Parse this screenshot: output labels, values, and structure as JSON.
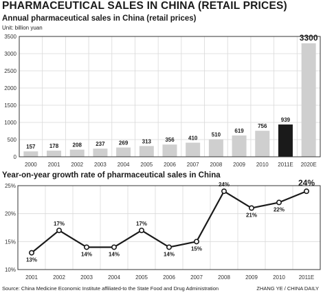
{
  "title": "PHARMACEUTICAL SALES IN CHINA  (RETAIL PRICES)",
  "source": "Source: China Medicine Economic Institute affiliated-to the State Food and Drug Administration",
  "credit": "ZHANG YE / CHINA DAILY",
  "colors": {
    "bar": "#cfcfcf",
    "highlight": "#1a1a1a",
    "line": "#1a1a1a",
    "grid": "#d9d9d9",
    "frame": "#333333"
  },
  "chart_data": [
    {
      "type": "bar",
      "title": "Annual pharmaceutical sales in China (retail prices)",
      "unit": "Unit: billion yuan",
      "categories": [
        "2000",
        "2001",
        "2002",
        "2003",
        "2004",
        "2005",
        "2006",
        "2007",
        "2008",
        "2009",
        "2010",
        "2011E",
        "2020E"
      ],
      "values": [
        157,
        178,
        208,
        237,
        269,
        313,
        356,
        410,
        510,
        619,
        756,
        939,
        3300
      ],
      "value_labels": [
        "157",
        "178",
        "208",
        "237",
        "269",
        "313",
        "356",
        "410",
        "510",
        "619",
        "756",
        "939",
        "3300"
      ],
      "highlight_category": "2011E",
      "yticks": [
        0,
        500,
        1000,
        1500,
        2000,
        2500,
        3000,
        3500
      ],
      "ylim": [
        0,
        3500
      ],
      "grid": true
    },
    {
      "type": "line",
      "title": "Year-on-year growth rate of pharmaceutical sales in China",
      "categories": [
        "2001",
        "2002",
        "2003",
        "2004",
        "2005",
        "2006",
        "2007",
        "2008",
        "2009",
        "2010",
        "2011E"
      ],
      "values": [
        13,
        17,
        14,
        14,
        17,
        14,
        15,
        24,
        21,
        22,
        24
      ],
      "value_labels": [
        "13%",
        "17%",
        "14%",
        "14%",
        "17%",
        "14%",
        "15%",
        "24%",
        "21%",
        "22%",
        "24%"
      ],
      "label_positions": [
        "below",
        "above",
        "below",
        "below",
        "above",
        "below",
        "below",
        "above",
        "below",
        "below",
        "above"
      ],
      "yticks": [
        10,
        15,
        20,
        25
      ],
      "ytick_labels": [
        "10%",
        "15%",
        "20%",
        "25%"
      ],
      "ylim": [
        10,
        25
      ],
      "grid": true
    }
  ]
}
